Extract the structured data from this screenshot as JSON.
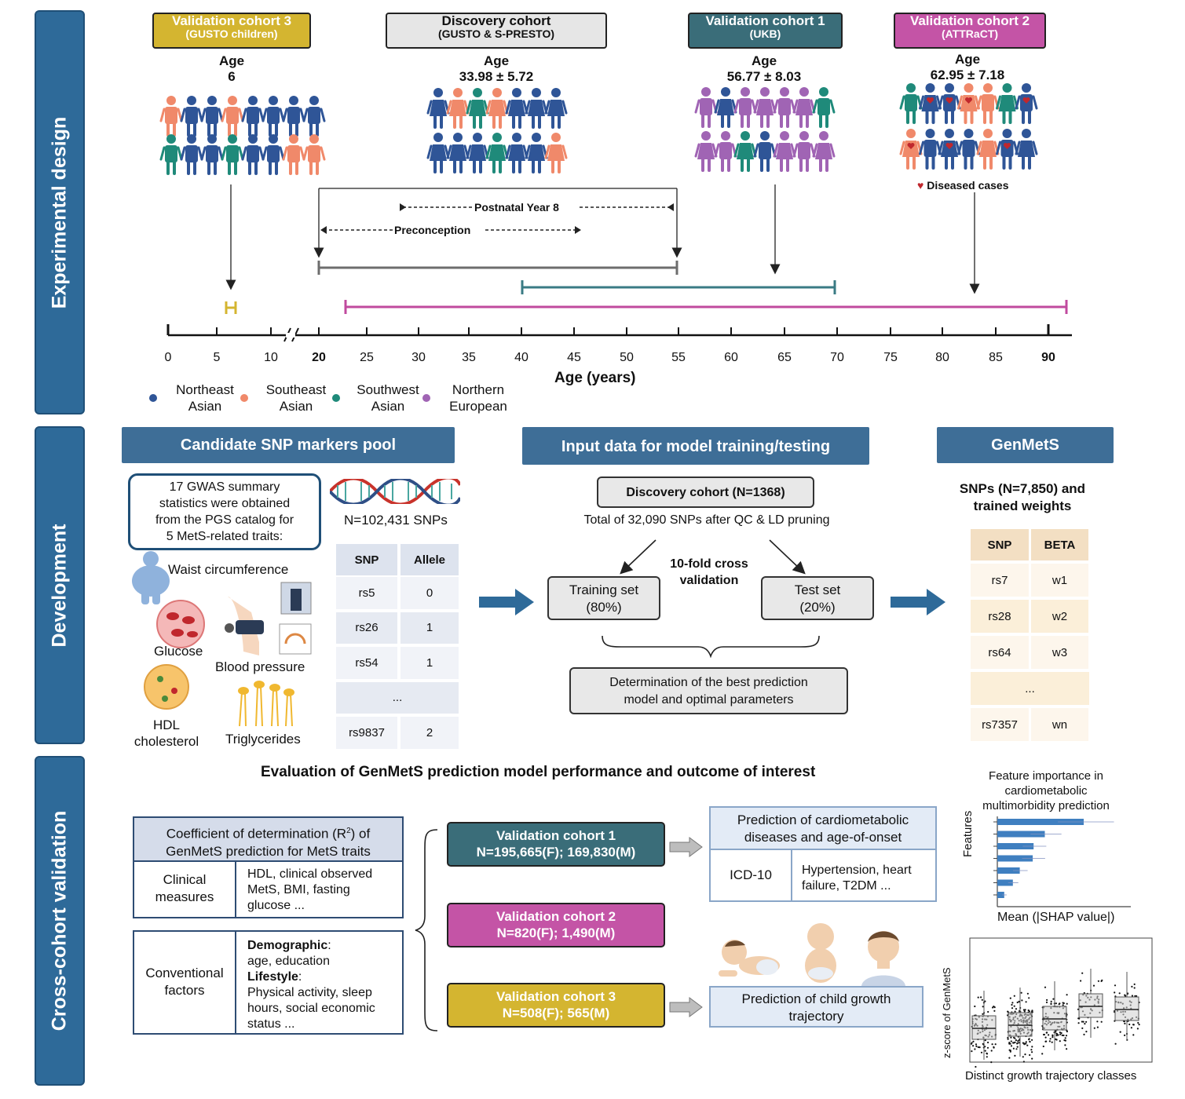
{
  "sections": {
    "experimental": "Experimental design",
    "development": "Development",
    "validation": "Cross-cohort validation"
  },
  "cohorts": {
    "vc3": {
      "name": "Validation cohort 3",
      "sub": "(GUSTO children)",
      "age_label": "Age",
      "age": "6",
      "color": "#d4b530"
    },
    "disc": {
      "name": "Discovery cohort",
      "sub": "(GUSTO & S-PRESTO)",
      "age_label": "Age",
      "age": "33.98 ± 5.72",
      "color": "#e6e6e6"
    },
    "vc1": {
      "name": "Validation cohort 1",
      "sub": "(UKB)",
      "age_label": "Age",
      "age": "56.77 ± 8.03",
      "color": "#3a6d79"
    },
    "vc2": {
      "name": "Validation cohort 2",
      "sub": "(ATTRaCT)",
      "age_label": "Age",
      "age": "62.95 ± 7.18",
      "color": "#c454a6"
    }
  },
  "diseased_label": "Diseased cases",
  "timeline": {
    "postnatal": "Postnatal Year 8",
    "preconception": "Preconception",
    "ticks": [
      "0",
      "5",
      "10",
      "20",
      "25",
      "30",
      "35",
      "40",
      "45",
      "50",
      "55",
      "60",
      "65",
      "70",
      "75",
      "80",
      "85",
      "90"
    ],
    "axis_label": "Age (years)"
  },
  "legend": [
    {
      "line1": "Northeast",
      "line2": "Asian",
      "color": "#2f5597"
    },
    {
      "line1": "Southeast",
      "line2": "Asian",
      "color": "#f0896a"
    },
    {
      "line1": "Southwest",
      "line2": "Asian",
      "color": "#1f8a7a"
    },
    {
      "line1": "Northern",
      "line2": "European",
      "color": "#a064b4"
    }
  ],
  "colors": {
    "ne": "#2f5597",
    "se": "#f0896a",
    "sw": "#1f8a7a",
    "eu": "#a064b4",
    "heart": "#c0272d"
  },
  "dev": {
    "pool_header": "Candidate SNP markers pool",
    "gwas_text": [
      "17 GWAS summary",
      "statistics were obtained",
      "from the PGS catalog for",
      "5 MetS-related traits:"
    ],
    "n_snps": "N=102,431 SNPs",
    "traits": {
      "waist": "Waist circumference",
      "glucose": "Glucose",
      "bp": "Blood pressure",
      "hdl1": "HDL",
      "hdl2": "cholesterol",
      "tg": "Triglycerides"
    },
    "snp_table": {
      "headers": [
        "SNP",
        "Allele"
      ],
      "rows": [
        [
          "rs5",
          "0"
        ],
        [
          "rs26",
          "1"
        ],
        [
          "rs54",
          "1"
        ],
        [
          "...",
          ""
        ],
        [
          "rs9837",
          "2"
        ]
      ]
    },
    "input_header": "Input data for model training/testing",
    "discovery_box": "Discovery cohort (N=1368)",
    "total_snps": "Total of 32,090 SNPs after QC & LD pruning",
    "cv_label": [
      "10-fold cross",
      "validation"
    ],
    "training": [
      "Training set",
      "(80%)"
    ],
    "test": [
      "Test set",
      "(20%)"
    ],
    "determination": [
      "Determination of the best prediction",
      "model and optimal parameters"
    ],
    "genmets_header": "GenMetS",
    "genmets_sub": [
      "SNPs (N=7,850) and",
      "trained weights"
    ],
    "gm_table": {
      "headers": [
        "SNP",
        "BETA"
      ],
      "rows": [
        [
          "rs7",
          "w1"
        ],
        [
          "rs28",
          "w2"
        ],
        [
          "rs64",
          "w3"
        ],
        [
          "...",
          ""
        ],
        [
          "rs7357",
          "wn"
        ]
      ]
    }
  },
  "val": {
    "title": "Evaluation of GenMetS prediction model performance and outcome of interest",
    "r2_title": [
      "Coefficient of determination (R",
      "2",
      ") of",
      "GenMetS prediction for MetS traits"
    ],
    "clinical": {
      "label": [
        "Clinical",
        "measures"
      ],
      "text": [
        "HDL, clinical observed",
        "MetS, BMI, fasting",
        "glucose ..."
      ]
    },
    "conventional": {
      "label": [
        "Conventional",
        "factors"
      ],
      "demo_label": "Demographic",
      "demo_text": "age, education",
      "life_label": "Lifestyle",
      "life_text": [
        "Physical activity, sleep",
        "hours, social economic",
        "status  ..."
      ]
    },
    "vc1": [
      "Validation cohort 1",
      "N=195,665(F); 169,830(M)"
    ],
    "vc2": [
      "Validation cohort 2",
      "N=820(F); 1,490(M)"
    ],
    "vc3": [
      "Validation cohort 3",
      "N=508(F); 565(M)"
    ],
    "cardio": {
      "title": [
        "Prediction of cardiometabolic",
        "diseases and age-of-onset"
      ],
      "icd": "ICD-10",
      "diseases": [
        "Hypertension, heart",
        "failure, T2DM ..."
      ]
    },
    "child": [
      "Prediction of child growth",
      "trajectory"
    ],
    "shap": {
      "title": [
        "Feature importance in",
        "cardiometabolic",
        "multimorbidity prediction"
      ],
      "ylabel": "Features",
      "xlabel": "Mean (|SHAP value|)"
    },
    "box": {
      "ylabel": "z-score of GenMetS",
      "xlabel": "Distinct growth trajectory classes"
    }
  },
  "chart_data": [
    {
      "type": "bar",
      "orientation": "horizontal",
      "title": "",
      "xlabel": "Mean (|SHAP value|)",
      "ylabel": "Features",
      "values": [
        1.0,
        0.55,
        0.42,
        0.41,
        0.26,
        0.18,
        0.08
      ]
    },
    {
      "type": "box",
      "title": "",
      "xlabel": "Distinct growth trajectory classes",
      "ylabel": "z-score of GenMetS",
      "categories": [
        "1",
        "2",
        "3",
        "4",
        "5"
      ],
      "medians": [
        0.2,
        0.3,
        0.5,
        0.9,
        0.8
      ]
    }
  ]
}
